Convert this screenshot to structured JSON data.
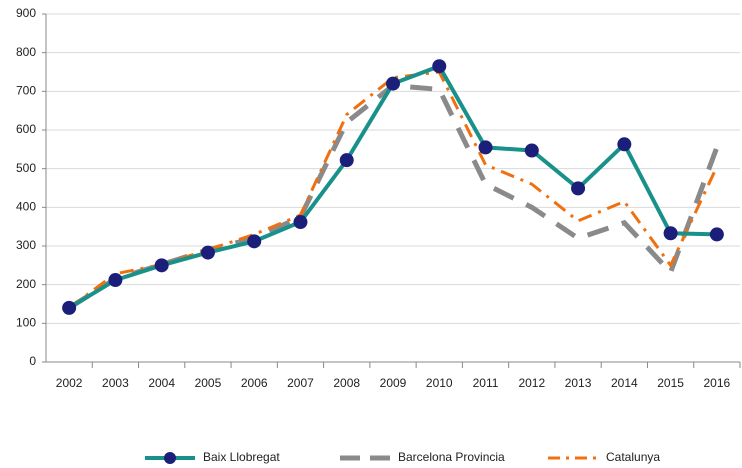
{
  "chart_data": {
    "type": "line",
    "categories": [
      "2002",
      "2003",
      "2004",
      "2005",
      "2006",
      "2007",
      "2008",
      "2009",
      "2010",
      "2011",
      "2012",
      "2013",
      "2014",
      "2015",
      "2016"
    ],
    "series": [
      {
        "name": "Baix Llobregat",
        "color": "#17918a",
        "marker_color": "#1b1f7a",
        "values": [
          140,
          212,
          250,
          283,
          312,
          362,
          522,
          720,
          765,
          555,
          547,
          449,
          563,
          333,
          330
        ]
      },
      {
        "name": "Barcelona Provincia",
        "color": "#8a8a8a",
        "values": [
          140,
          215,
          252,
          290,
          320,
          375,
          620,
          715,
          705,
          460,
          400,
          320,
          360,
          232,
          555
        ]
      },
      {
        "name": "Catalunya",
        "color": "#f07010",
        "values": [
          140,
          228,
          252,
          290,
          330,
          380,
          640,
          735,
          750,
          510,
          460,
          365,
          415,
          250,
          505
        ]
      }
    ],
    "ylim": [
      0,
      900
    ],
    "yticks": [
      0,
      100,
      200,
      300,
      400,
      500,
      600,
      700,
      800,
      900
    ],
    "grid": true,
    "legend": "bottom"
  }
}
